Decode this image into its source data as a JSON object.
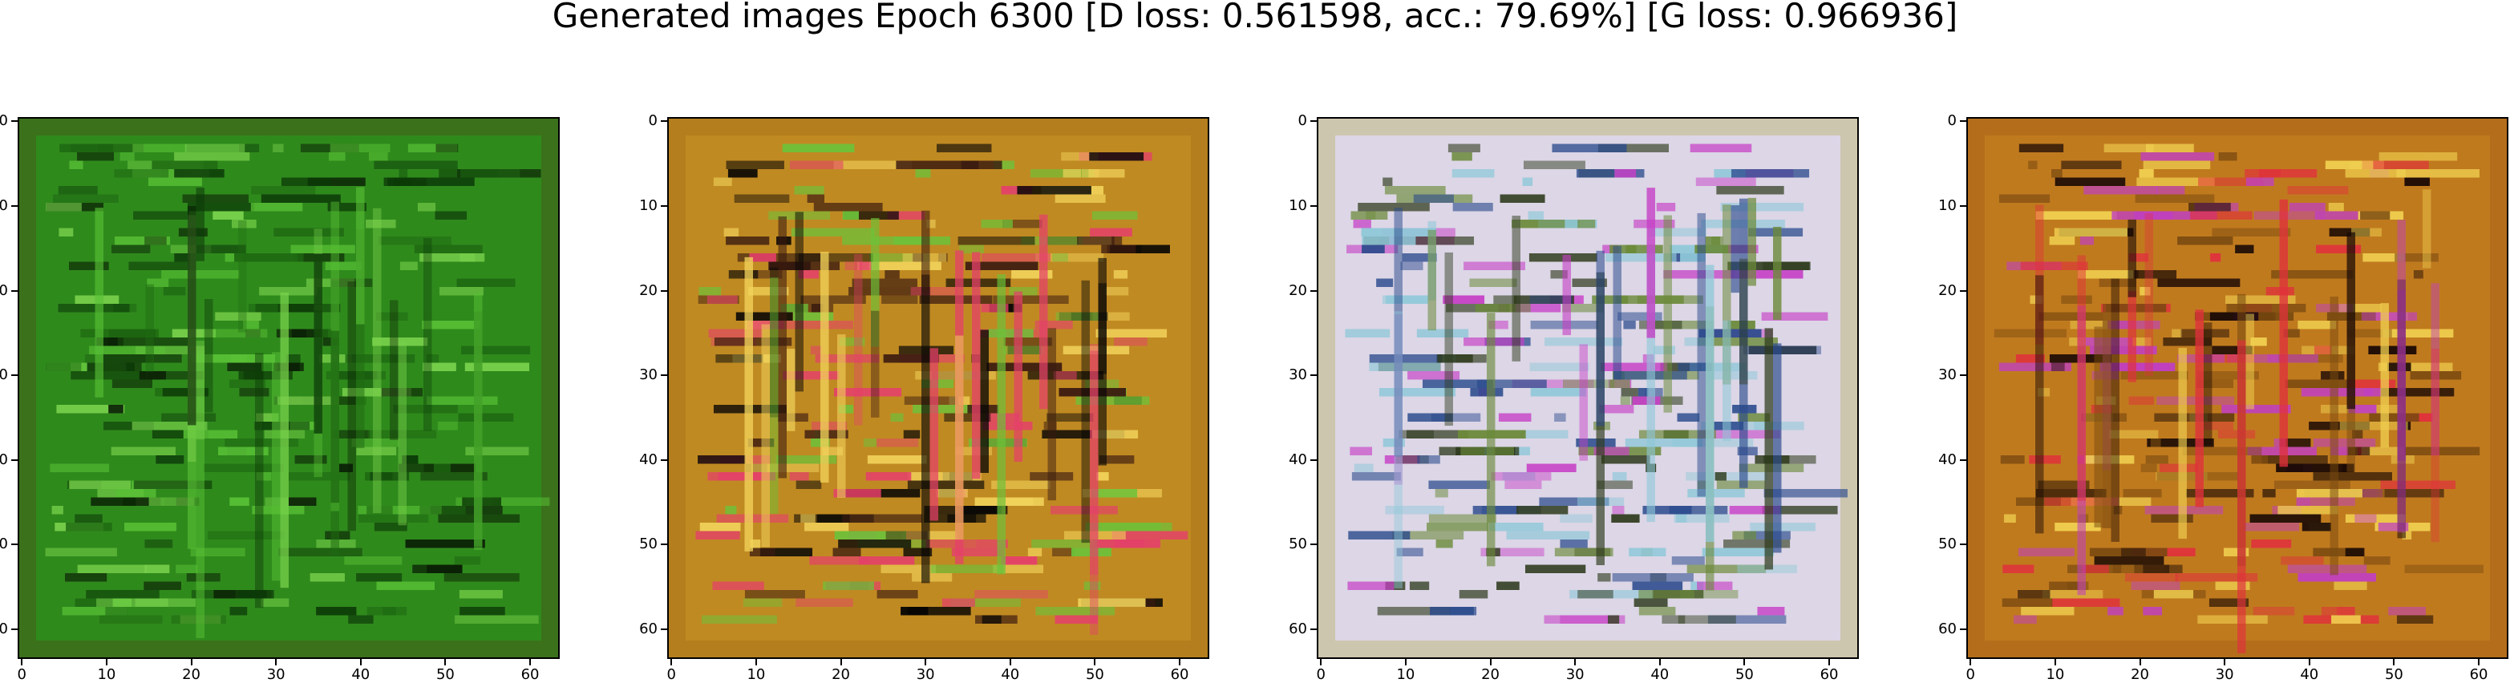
{
  "figure": {
    "title": "Generated images Epoch 6300 [D loss: 0.561598, acc.: 79.69%] [G loss: 0.966936]"
  },
  "panels": [
    {
      "name": "generated-image-1",
      "base_color": "#2f8a1c",
      "frame_color": "#3f6a1c",
      "palette": [
        "#0c3a08",
        "#58c035",
        "#1f6a12",
        "#7ad24c",
        "#0a1f05"
      ]
    },
    {
      "name": "generated-image-2",
      "base_color": "#c08a22",
      "frame_color": "#b07a1e",
      "palette": [
        "#050505",
        "#e4406a",
        "#f1d25a",
        "#6cc23a",
        "#3a1a10"
      ]
    },
    {
      "name": "generated-image-3",
      "base_color": "#dcd6e6",
      "frame_color": "#c9c2a0",
      "palette": [
        "#2e3a1c",
        "#c640c6",
        "#2a4a8c",
        "#8fc8d8",
        "#6b8a3a"
      ]
    },
    {
      "name": "generated-image-4",
      "base_color": "#c07a1e",
      "frame_color": "#b06c1a",
      "palette": [
        "#1a0a05",
        "#e0303c",
        "#f0d050",
        "#7a4a10",
        "#c040c0"
      ]
    }
  ],
  "axes": {
    "xtick_labels": [
      "0",
      "10",
      "20",
      "30",
      "40",
      "50",
      "60"
    ],
    "ytick_labels": [
      "0",
      "10",
      "20",
      "30",
      "40",
      "50",
      "60"
    ],
    "tick_values": [
      0,
      10,
      20,
      30,
      40,
      50,
      60
    ],
    "image_size": 64
  }
}
